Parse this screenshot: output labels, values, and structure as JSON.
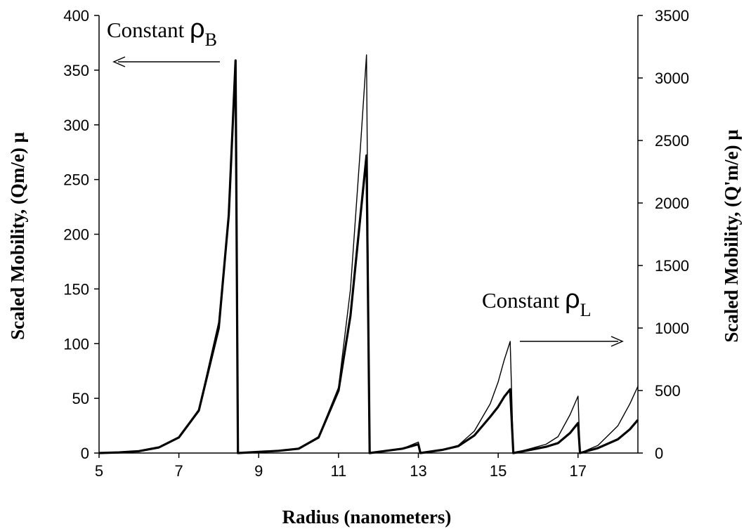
{
  "chart_data": {
    "type": "line",
    "xlabel": "Radius (nanometers)",
    "ylabel_left": "Scaled Mobility, (Qm/e) μ",
    "ylabel_right": "Scaled Mobility, (Q'm/e) μ",
    "xlim": [
      5,
      18.5
    ],
    "ylim_left": [
      0,
      400
    ],
    "ylim_right": [
      0,
      3500
    ],
    "x_ticks": [
      5,
      7,
      9,
      11,
      13,
      15,
      17
    ],
    "y_ticks_left": [
      0,
      50,
      100,
      150,
      200,
      250,
      300,
      350,
      400
    ],
    "y_ticks_right": [
      0,
      500,
      1000,
      1500,
      2000,
      2500,
      3000,
      3500
    ],
    "grid": false,
    "annotations": [
      {
        "text": "Constant ",
        "symbol": "ρ",
        "subscript": "B",
        "arrow": "left",
        "axis": "left"
      },
      {
        "text": "Constant ",
        "symbol": "ρ",
        "subscript": "L",
        "arrow": "right",
        "axis": "right"
      }
    ],
    "series": [
      {
        "axis": "left",
        "style": "thin",
        "points": [
          [
            5.0,
            0
          ],
          [
            5.5,
            0.5
          ],
          [
            6.0,
            1.5
          ],
          [
            6.5,
            5
          ],
          [
            7.0,
            14
          ],
          [
            7.5,
            40
          ],
          [
            8.0,
            120
          ],
          [
            8.25,
            220
          ],
          [
            8.42,
            358
          ],
          [
            8.48,
            0
          ],
          [
            9.0,
            1
          ],
          [
            9.5,
            2
          ],
          [
            10.0,
            4
          ],
          [
            10.5,
            15
          ],
          [
            11.0,
            60
          ],
          [
            11.3,
            150
          ],
          [
            11.55,
            280
          ],
          [
            11.7,
            364
          ],
          [
            11.78,
            0
          ],
          [
            12.2,
            2
          ],
          [
            12.6,
            4
          ],
          [
            13.0,
            10
          ],
          [
            13.05,
            0
          ],
          [
            13.6,
            3
          ],
          [
            14.0,
            7
          ],
          [
            14.4,
            20
          ],
          [
            14.8,
            45
          ],
          [
            15.0,
            65
          ],
          [
            15.15,
            85
          ],
          [
            15.3,
            102
          ],
          [
            15.38,
            0
          ],
          [
            15.8,
            4
          ],
          [
            16.2,
            8
          ],
          [
            16.5,
            15
          ],
          [
            16.8,
            35
          ],
          [
            17.0,
            52
          ],
          [
            17.05,
            0
          ],
          [
            17.5,
            7
          ],
          [
            18.0,
            25
          ],
          [
            18.3,
            45
          ],
          [
            18.5,
            61
          ]
        ]
      },
      {
        "axis": "right",
        "style": "thick",
        "points": [
          [
            5.0,
            0
          ],
          [
            5.5,
            5
          ],
          [
            6.0,
            15
          ],
          [
            6.5,
            45
          ],
          [
            7.0,
            125
          ],
          [
            7.5,
            340
          ],
          [
            8.0,
            1000
          ],
          [
            8.25,
            1900
          ],
          [
            8.42,
            3140
          ],
          [
            8.48,
            0
          ],
          [
            9.0,
            9
          ],
          [
            9.5,
            18
          ],
          [
            10.0,
            35
          ],
          [
            10.5,
            125
          ],
          [
            11.0,
            500
          ],
          [
            11.3,
            1100
          ],
          [
            11.55,
            1900
          ],
          [
            11.7,
            2380
          ],
          [
            11.78,
            0
          ],
          [
            12.2,
            18
          ],
          [
            12.6,
            35
          ],
          [
            13.0,
            70
          ],
          [
            13.05,
            0
          ],
          [
            13.6,
            25
          ],
          [
            14.0,
            55
          ],
          [
            14.4,
            140
          ],
          [
            14.8,
            290
          ],
          [
            15.0,
            370
          ],
          [
            15.15,
            450
          ],
          [
            15.3,
            510
          ],
          [
            15.38,
            0
          ],
          [
            15.8,
            25
          ],
          [
            16.2,
            50
          ],
          [
            16.5,
            80
          ],
          [
            16.8,
            160
          ],
          [
            17.0,
            240
          ],
          [
            17.05,
            0
          ],
          [
            17.5,
            40
          ],
          [
            18.0,
            110
          ],
          [
            18.3,
            190
          ],
          [
            18.5,
            265
          ]
        ]
      }
    ]
  }
}
